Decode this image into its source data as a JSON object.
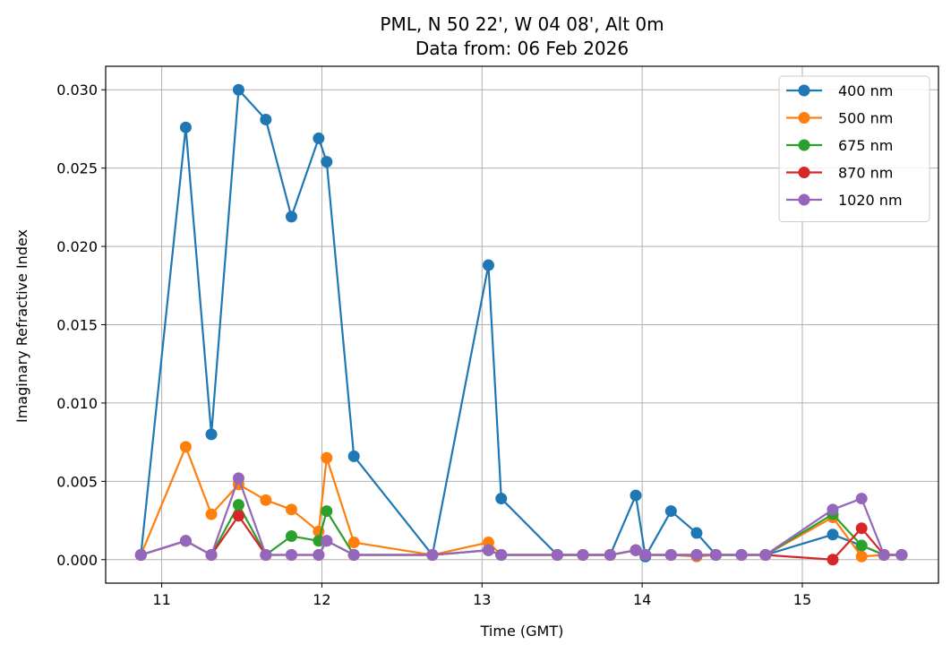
{
  "chart_data": {
    "type": "line",
    "title": "PML, N 50 22', W 04 08', Alt 0m",
    "subtitle": "Data from: 06 Feb 2026",
    "xlabel": "Time (GMT)",
    "ylabel": "Imaginary Refractive Index",
    "xlim": [
      10.65,
      15.85
    ],
    "ylim": [
      -0.0015,
      0.0315
    ],
    "xticks": [
      11,
      12,
      13,
      14,
      15
    ],
    "xtick_labels": [
      "11",
      "12",
      "13",
      "14",
      "15"
    ],
    "yticks": [
      0.0,
      0.005,
      0.01,
      0.015,
      0.02,
      0.025,
      0.03
    ],
    "ytick_labels": [
      "0.000",
      "0.005",
      "0.010",
      "0.015",
      "0.020",
      "0.025",
      "0.030"
    ],
    "grid": true,
    "legend_position": "top-right",
    "x": [
      10.87,
      11.15,
      11.31,
      11.48,
      11.65,
      11.81,
      11.98,
      12.03,
      12.2,
      12.69,
      13.04,
      13.12,
      13.47,
      13.63,
      13.8,
      13.96,
      14.02,
      14.18,
      14.34,
      14.46,
      14.62,
      14.77,
      15.19,
      15.37,
      15.51,
      15.62
    ],
    "series": [
      {
        "name": "400 nm",
        "color": "#1f77b4",
        "values": [
          0.0003,
          0.0276,
          0.008,
          0.03,
          0.0281,
          0.0219,
          0.0269,
          0.0254,
          0.0066,
          0.0003,
          0.0188,
          0.0039,
          0.0003,
          0.0003,
          0.0003,
          0.0041,
          0.0002,
          0.0031,
          0.0017,
          0.0003,
          0.0003,
          0.0003,
          0.0016,
          0.0009,
          0.0003,
          0.0003
        ]
      },
      {
        "name": "500 nm",
        "color": "#ff7f0e",
        "values": [
          0.0003,
          0.0072,
          0.0029,
          0.0048,
          0.0038,
          0.0032,
          0.0018,
          0.0065,
          0.0011,
          0.0003,
          0.0011,
          0.0003,
          0.0003,
          0.0003,
          0.0003,
          0.0006,
          0.0003,
          0.0003,
          0.0002,
          0.0003,
          0.0003,
          0.0003,
          0.0027,
          0.0002,
          0.0003,
          0.0003
        ]
      },
      {
        "name": "675 nm",
        "color": "#2ca02c",
        "values": [
          0.0003,
          0.0012,
          0.0003,
          0.0035,
          0.0003,
          0.0015,
          0.0012,
          0.0031,
          0.0003,
          0.0003,
          0.0006,
          0.0003,
          0.0003,
          0.0003,
          0.0003,
          0.0006,
          0.0003,
          0.0003,
          0.0003,
          0.0003,
          0.0003,
          0.0003,
          0.0029,
          0.0009,
          0.0003,
          0.0003
        ]
      },
      {
        "name": "870 nm",
        "color": "#d62728",
        "values": [
          0.0003,
          0.0012,
          0.0003,
          0.0028,
          0.0003,
          0.0003,
          0.0003,
          0.0012,
          0.0003,
          0.0003,
          0.0006,
          0.0003,
          0.0003,
          0.0003,
          0.0003,
          0.0006,
          0.0003,
          0.0003,
          0.0003,
          0.0003,
          0.0003,
          0.0003,
          0.0,
          0.002,
          0.0003,
          0.0003
        ]
      },
      {
        "name": "1020 nm",
        "color": "#9467bd",
        "values": [
          0.0003,
          0.0012,
          0.0003,
          0.0052,
          0.0003,
          0.0003,
          0.0003,
          0.0012,
          0.0003,
          0.0003,
          0.0006,
          0.0003,
          0.0003,
          0.0003,
          0.0003,
          0.0006,
          0.0003,
          0.0003,
          0.0003,
          0.0003,
          0.0003,
          0.0003,
          0.0032,
          0.0039,
          0.0003,
          0.0003
        ]
      }
    ]
  }
}
